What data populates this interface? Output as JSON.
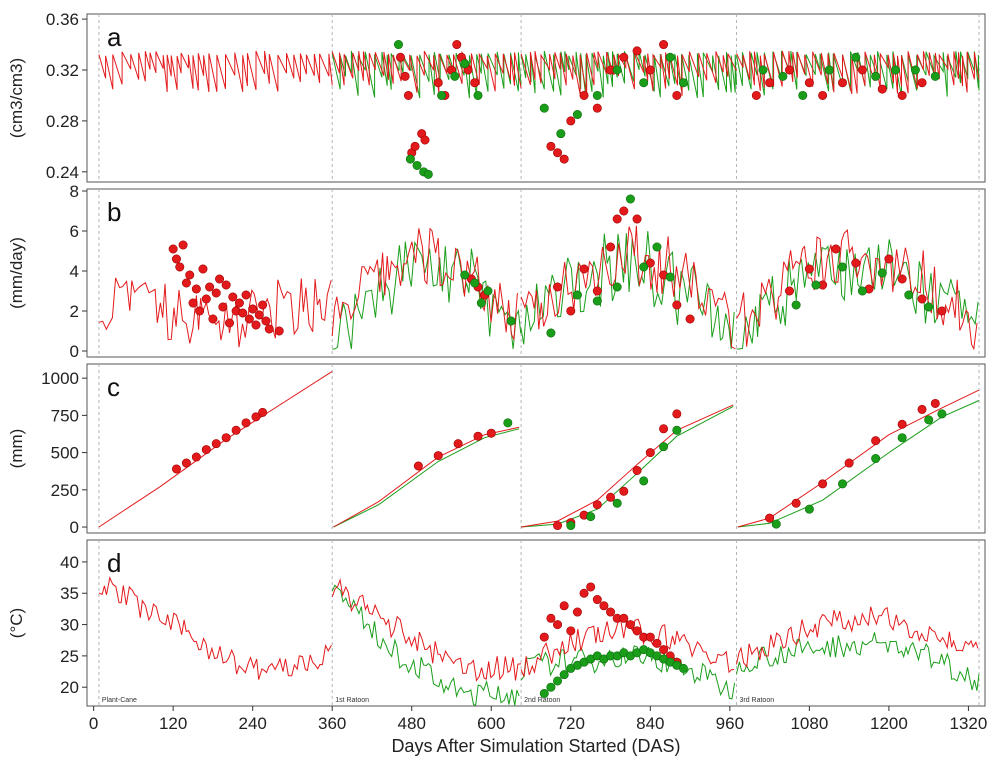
{
  "chart_data": {
    "type": "line",
    "xlabel": "Days After Simulation Started (DAS)",
    "xlim": [
      -10,
      1345
    ],
    "x_ticks": [
      0,
      120,
      240,
      360,
      480,
      600,
      720,
      840,
      960,
      1080,
      1200,
      1320
    ],
    "segments": [
      {
        "label": "Plant-Cane",
        "start": 8,
        "end": 360
      },
      {
        "label": "1st Ratoon",
        "start": 360,
        "end": 645
      },
      {
        "label": "2nd Ratoon",
        "start": 645,
        "end": 970
      },
      {
        "label": "3rd Ratoon",
        "start": 970,
        "end": 1336
      }
    ],
    "colors": {
      "red": "#e31a1c",
      "green": "#1a9e1a",
      "divider": "#b4b4b4",
      "frame": "#555555"
    },
    "panels": [
      {
        "label": "a",
        "ylabel": "(cm3/cm3)",
        "ylim": [
          0.232,
          0.364
        ],
        "y_ticks": [
          "0.24",
          "0.28",
          "0.32",
          "0.36"
        ],
        "y_tick_values": [
          0.24,
          0.28,
          0.32,
          0.36
        ],
        "kind": "sawtooth",
        "line_params": {
          "base": 0.295,
          "top": 0.335,
          "fall": 0.032
        },
        "points_red": [
          [
            463,
            0.33
          ],
          [
            470,
            0.315
          ],
          [
            475,
            0.3
          ],
          [
            480,
            0.255
          ],
          [
            485,
            0.26
          ],
          [
            495,
            0.27
          ],
          [
            500,
            0.265
          ],
          [
            520,
            0.31
          ],
          [
            530,
            0.3
          ],
          [
            540,
            0.32
          ],
          [
            548,
            0.34
          ],
          [
            555,
            0.33
          ],
          [
            565,
            0.32
          ],
          [
            575,
            0.31
          ],
          [
            690,
            0.26
          ],
          [
            700,
            0.255
          ],
          [
            710,
            0.25
          ],
          [
            720,
            0.28
          ],
          [
            740,
            0.3
          ],
          [
            760,
            0.29
          ],
          [
            780,
            0.32
          ],
          [
            800,
            0.33
          ],
          [
            820,
            0.335
          ],
          [
            840,
            0.32
          ],
          [
            860,
            0.34
          ],
          [
            880,
            0.3
          ],
          [
            1000,
            0.3
          ],
          [
            1020,
            0.31
          ],
          [
            1050,
            0.32
          ],
          [
            1080,
            0.31
          ],
          [
            1100,
            0.3
          ],
          [
            1130,
            0.31
          ],
          [
            1160,
            0.32
          ],
          [
            1190,
            0.305
          ],
          [
            1220,
            0.3
          ],
          [
            1250,
            0.31
          ]
        ],
        "points_green": [
          [
            460,
            0.34
          ],
          [
            478,
            0.25
          ],
          [
            488,
            0.245
          ],
          [
            498,
            0.24
          ],
          [
            505,
            0.238
          ],
          [
            525,
            0.3
          ],
          [
            545,
            0.315
          ],
          [
            560,
            0.325
          ],
          [
            580,
            0.3
          ],
          [
            680,
            0.29
          ],
          [
            705,
            0.27
          ],
          [
            730,
            0.285
          ],
          [
            760,
            0.3
          ],
          [
            790,
            0.32
          ],
          [
            830,
            0.31
          ],
          [
            870,
            0.33
          ],
          [
            890,
            0.31
          ],
          [
            1010,
            0.32
          ],
          [
            1040,
            0.315
          ],
          [
            1070,
            0.3
          ],
          [
            1110,
            0.32
          ],
          [
            1150,
            0.33
          ],
          [
            1180,
            0.315
          ],
          [
            1210,
            0.32
          ],
          [
            1240,
            0.32
          ],
          [
            1270,
            0.315
          ]
        ]
      },
      {
        "label": "b",
        "ylabel": "(mm/day)",
        "ylim": [
          -0.3,
          8.1
        ],
        "y_ticks": [
          "0",
          "2",
          "4",
          "6",
          "8"
        ],
        "y_tick_values": [
          0,
          2,
          4,
          6,
          8
        ],
        "kind": "spiky",
        "points_red": [
          [
            120,
            5.1
          ],
          [
            125,
            4.6
          ],
          [
            130,
            4.2
          ],
          [
            135,
            5.3
          ],
          [
            140,
            3.4
          ],
          [
            145,
            3.8
          ],
          [
            150,
            2.4
          ],
          [
            155,
            3.1
          ],
          [
            160,
            2.0
          ],
          [
            165,
            4.1
          ],
          [
            170,
            2.6
          ],
          [
            175,
            3.2
          ],
          [
            180,
            1.6
          ],
          [
            185,
            2.9
          ],
          [
            190,
            3.6
          ],
          [
            195,
            2.2
          ],
          [
            200,
            3.3
          ],
          [
            205,
            1.4
          ],
          [
            210,
            2.7
          ],
          [
            215,
            2.0
          ],
          [
            220,
            2.4
          ],
          [
            225,
            1.9
          ],
          [
            230,
            2.8
          ],
          [
            235,
            1.6
          ],
          [
            240,
            2.1
          ],
          [
            245,
            1.3
          ],
          [
            250,
            1.8
          ],
          [
            255,
            2.3
          ],
          [
            260,
            1.5
          ],
          [
            265,
            1.1
          ],
          [
            280,
            1.0
          ],
          [
            570,
            3.6
          ],
          [
            580,
            3.2
          ],
          [
            590,
            2.8
          ],
          [
            700,
            3.2
          ],
          [
            720,
            2.0
          ],
          [
            740,
            4.1
          ],
          [
            760,
            3.0
          ],
          [
            780,
            5.2
          ],
          [
            790,
            6.6
          ],
          [
            800,
            7.0
          ],
          [
            820,
            6.6
          ],
          [
            840,
            4.4
          ],
          [
            860,
            3.8
          ],
          [
            880,
            2.3
          ],
          [
            900,
            1.6
          ],
          [
            1050,
            3.0
          ],
          [
            1080,
            4.1
          ],
          [
            1100,
            3.3
          ],
          [
            1120,
            5.1
          ],
          [
            1150,
            4.4
          ],
          [
            1170,
            3.1
          ],
          [
            1200,
            4.6
          ],
          [
            1220,
            3.6
          ],
          [
            1250,
            2.6
          ],
          [
            1280,
            2.0
          ]
        ],
        "points_green": [
          [
            560,
            3.8
          ],
          [
            575,
            3.4
          ],
          [
            585,
            2.4
          ],
          [
            595,
            3.0
          ],
          [
            630,
            1.5
          ],
          [
            690,
            0.9
          ],
          [
            730,
            2.8
          ],
          [
            760,
            2.5
          ],
          [
            790,
            3.2
          ],
          [
            810,
            7.6
          ],
          [
            830,
            4.2
          ],
          [
            850,
            5.2
          ],
          [
            870,
            3.7
          ],
          [
            1060,
            2.3
          ],
          [
            1090,
            3.3
          ],
          [
            1130,
            4.2
          ],
          [
            1160,
            3.0
          ],
          [
            1190,
            3.9
          ],
          [
            1230,
            2.8
          ],
          [
            1260,
            2.2
          ]
        ]
      },
      {
        "label": "c",
        "ylabel": "(mm)",
        "ylim": [
          -40,
          1095
        ],
        "y_ticks": [
          "0",
          "250",
          "500",
          "750",
          "1000"
        ],
        "y_tick_values": [
          0,
          250,
          500,
          750,
          1000
        ],
        "kind": "cumulative",
        "red_series": [
          [
            [
              8,
              0
            ],
            [
              100,
              270
            ],
            [
              200,
              590
            ],
            [
              360,
              1045
            ]
          ],
          [
            [
              362,
              0
            ],
            [
              430,
              170
            ],
            [
              520,
              470
            ],
            [
              590,
              620
            ],
            [
              642,
              670
            ]
          ],
          [
            [
              645,
              0
            ],
            [
              700,
              40
            ],
            [
              760,
              180
            ],
            [
              820,
              420
            ],
            [
              880,
              650
            ],
            [
              965,
              820
            ]
          ],
          [
            [
              972,
              0
            ],
            [
              1020,
              60
            ],
            [
              1100,
              300
            ],
            [
              1200,
              620
            ],
            [
              1280,
              800
            ],
            [
              1336,
              920
            ]
          ]
        ],
        "green_series": [
          [
            [
              362,
              0
            ],
            [
              430,
              150
            ],
            [
              520,
              440
            ],
            [
              590,
              600
            ],
            [
              642,
              660
            ]
          ],
          [
            [
              645,
              0
            ],
            [
              700,
              20
            ],
            [
              760,
              120
            ],
            [
              820,
              360
            ],
            [
              880,
              610
            ],
            [
              965,
              810
            ]
          ],
          [
            [
              972,
              0
            ],
            [
              1020,
              25
            ],
            [
              1100,
              180
            ],
            [
              1200,
              500
            ],
            [
              1280,
              740
            ],
            [
              1336,
              850
            ]
          ]
        ],
        "points_red": [
          [
            125,
            390
          ],
          [
            140,
            430
          ],
          [
            155,
            470
          ],
          [
            170,
            520
          ],
          [
            185,
            560
          ],
          [
            200,
            600
          ],
          [
            215,
            650
          ],
          [
            230,
            700
          ],
          [
            245,
            740
          ],
          [
            255,
            770
          ],
          [
            490,
            410
          ],
          [
            520,
            480
          ],
          [
            550,
            560
          ],
          [
            580,
            610
          ],
          [
            600,
            630
          ],
          [
            700,
            10
          ],
          [
            720,
            30
          ],
          [
            740,
            80
          ],
          [
            760,
            150
          ],
          [
            780,
            200
          ],
          [
            800,
            240
          ],
          [
            820,
            380
          ],
          [
            840,
            500
          ],
          [
            860,
            660
          ],
          [
            880,
            760
          ],
          [
            1020,
            60
          ],
          [
            1060,
            160
          ],
          [
            1100,
            290
          ],
          [
            1140,
            430
          ],
          [
            1180,
            580
          ],
          [
            1220,
            690
          ],
          [
            1250,
            790
          ],
          [
            1270,
            830
          ]
        ],
        "points_green": [
          [
            625,
            700
          ],
          [
            720,
            10
          ],
          [
            750,
            70
          ],
          [
            790,
            160
          ],
          [
            830,
            310
          ],
          [
            860,
            540
          ],
          [
            880,
            650
          ],
          [
            1030,
            20
          ],
          [
            1080,
            120
          ],
          [
            1130,
            290
          ],
          [
            1180,
            460
          ],
          [
            1220,
            600
          ],
          [
            1260,
            720
          ],
          [
            1280,
            760
          ]
        ]
      },
      {
        "label": "d",
        "ylabel": "(°C)",
        "ylim": [
          17,
          43.5
        ],
        "y_ticks": [
          "20",
          "25",
          "30",
          "35",
          "40"
        ],
        "y_tick_values": [
          20,
          25,
          30,
          35,
          40
        ],
        "kind": "temperature",
        "points_red": [
          [
            680,
            28
          ],
          [
            690,
            31
          ],
          [
            700,
            30
          ],
          [
            710,
            33
          ],
          [
            720,
            29
          ],
          [
            730,
            32
          ],
          [
            740,
            35
          ],
          [
            750,
            36
          ],
          [
            760,
            34
          ],
          [
            770,
            33
          ],
          [
            780,
            32
          ],
          [
            790,
            31
          ],
          [
            800,
            31
          ],
          [
            810,
            30
          ],
          [
            820,
            29
          ],
          [
            830,
            28
          ],
          [
            840,
            28
          ],
          [
            850,
            27
          ],
          [
            860,
            26
          ],
          [
            870,
            25
          ],
          [
            880,
            24
          ]
        ],
        "points_green": [
          [
            680,
            19
          ],
          [
            690,
            20
          ],
          [
            700,
            21
          ],
          [
            710,
            22
          ],
          [
            720,
            23
          ],
          [
            730,
            23.5
          ],
          [
            740,
            24
          ],
          [
            750,
            24.5
          ],
          [
            760,
            25
          ],
          [
            770,
            24.5
          ],
          [
            780,
            25
          ],
          [
            790,
            25
          ],
          [
            800,
            25.5
          ],
          [
            810,
            25
          ],
          [
            820,
            25.5
          ],
          [
            830,
            26
          ],
          [
            840,
            25.5
          ],
          [
            850,
            25
          ],
          [
            860,
            24.5
          ],
          [
            870,
            24
          ],
          [
            880,
            23.5
          ],
          [
            890,
            23
          ]
        ]
      }
    ]
  }
}
